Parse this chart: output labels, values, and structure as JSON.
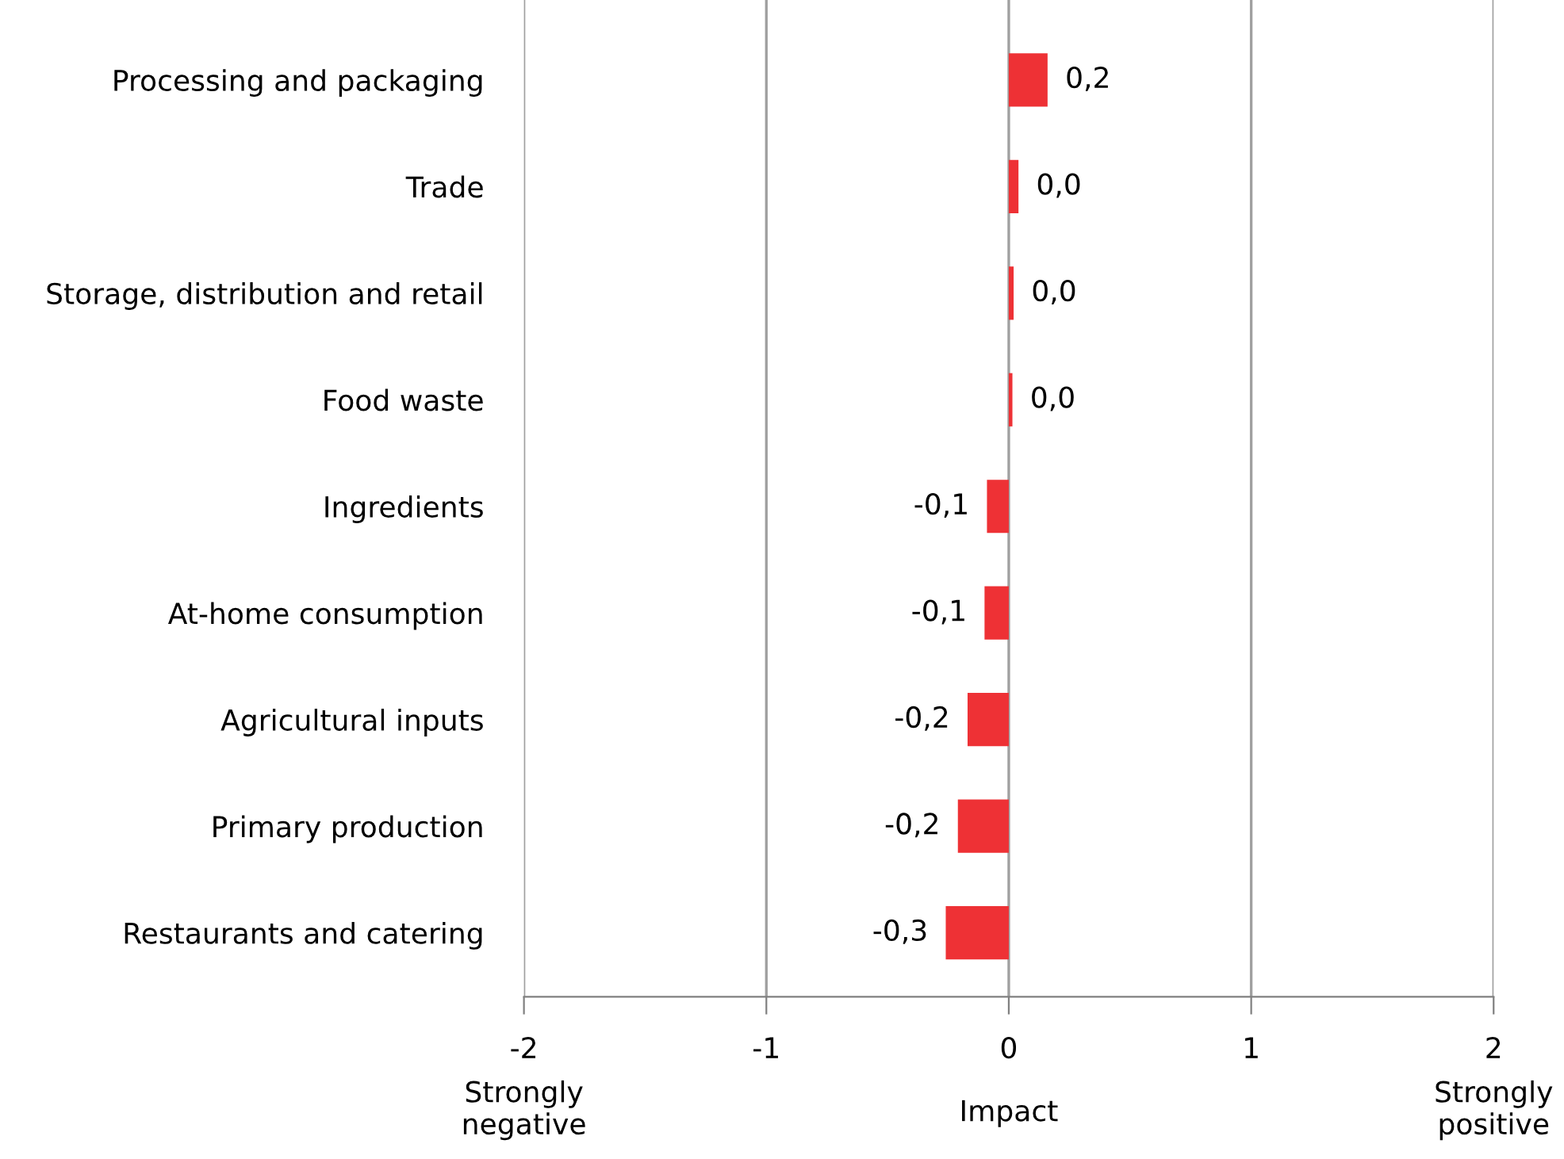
{
  "chart_data": {
    "type": "bar",
    "orientation": "horizontal",
    "categories": [
      "Processing and packaging",
      "Trade",
      "Storage, distribution and retail",
      "Food waste",
      "Ingredients",
      "At-home consumption",
      "Agricultural inputs",
      "Primary production",
      "Restaurants and catering"
    ],
    "values": [
      0.16,
      0.04,
      0.02,
      0.015,
      -0.09,
      -0.1,
      -0.17,
      -0.21,
      -0.26
    ],
    "value_labels": [
      "0,2",
      "0,0",
      "0,0",
      "0,0",
      "-0,1",
      "-0,1",
      "-0,2",
      "-0,2",
      "-0,3"
    ],
    "color": "#ee3135",
    "xlim": [
      -2,
      2
    ],
    "xticks": [
      -2,
      -1,
      0,
      1,
      2
    ],
    "xlabel": "Impact",
    "annotations": [
      "Strongly\nnegative",
      "Strongly\npositive"
    ],
    "grid": "x"
  }
}
